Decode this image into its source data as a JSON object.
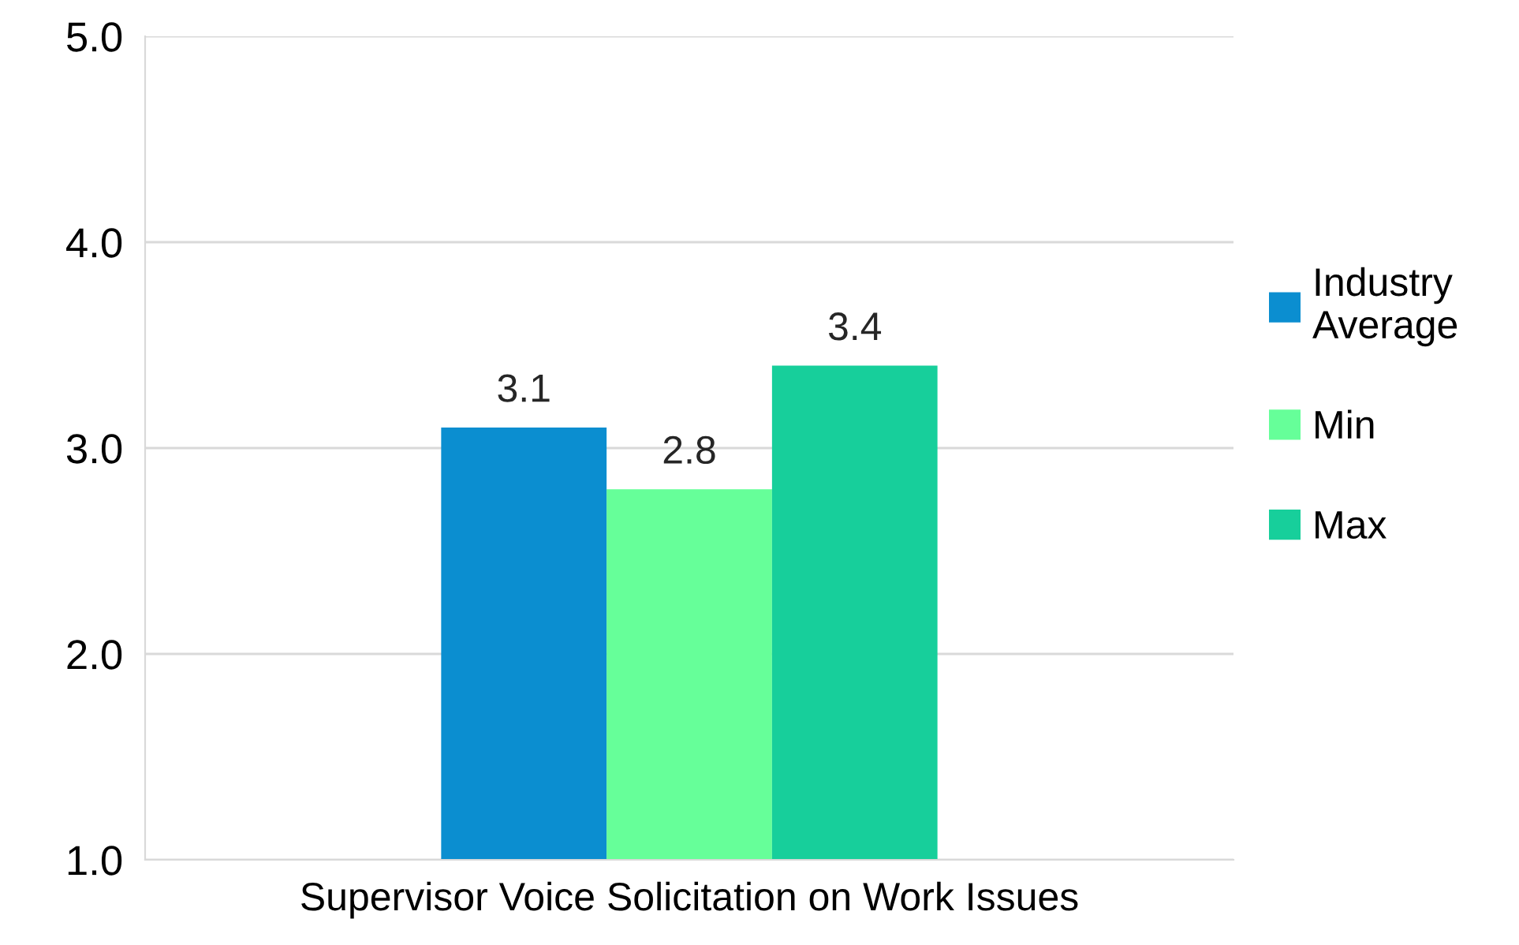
{
  "chart_data": {
    "type": "bar",
    "categories": [
      "Supervisor Voice Solicitation on Work Issues"
    ],
    "series": [
      {
        "name": "Industry\nAverage",
        "color": "#0b8ed0",
        "values": [
          3.1
        ]
      },
      {
        "name": "Min",
        "color": "#66ff99",
        "values": [
          2.8
        ]
      },
      {
        "name": "Max",
        "color": "#17cf9b",
        "values": [
          3.4
        ]
      }
    ],
    "ylim": [
      1,
      5
    ],
    "yticks": [
      {
        "value": 1,
        "label": "1.0"
      },
      {
        "value": 2,
        "label": "2.0"
      },
      {
        "value": 3,
        "label": "3.0"
      },
      {
        "value": 4,
        "label": "4.0"
      },
      {
        "value": 5,
        "label": "5.0"
      }
    ],
    "grid": "y",
    "legend": "right",
    "data_labels": true
  }
}
